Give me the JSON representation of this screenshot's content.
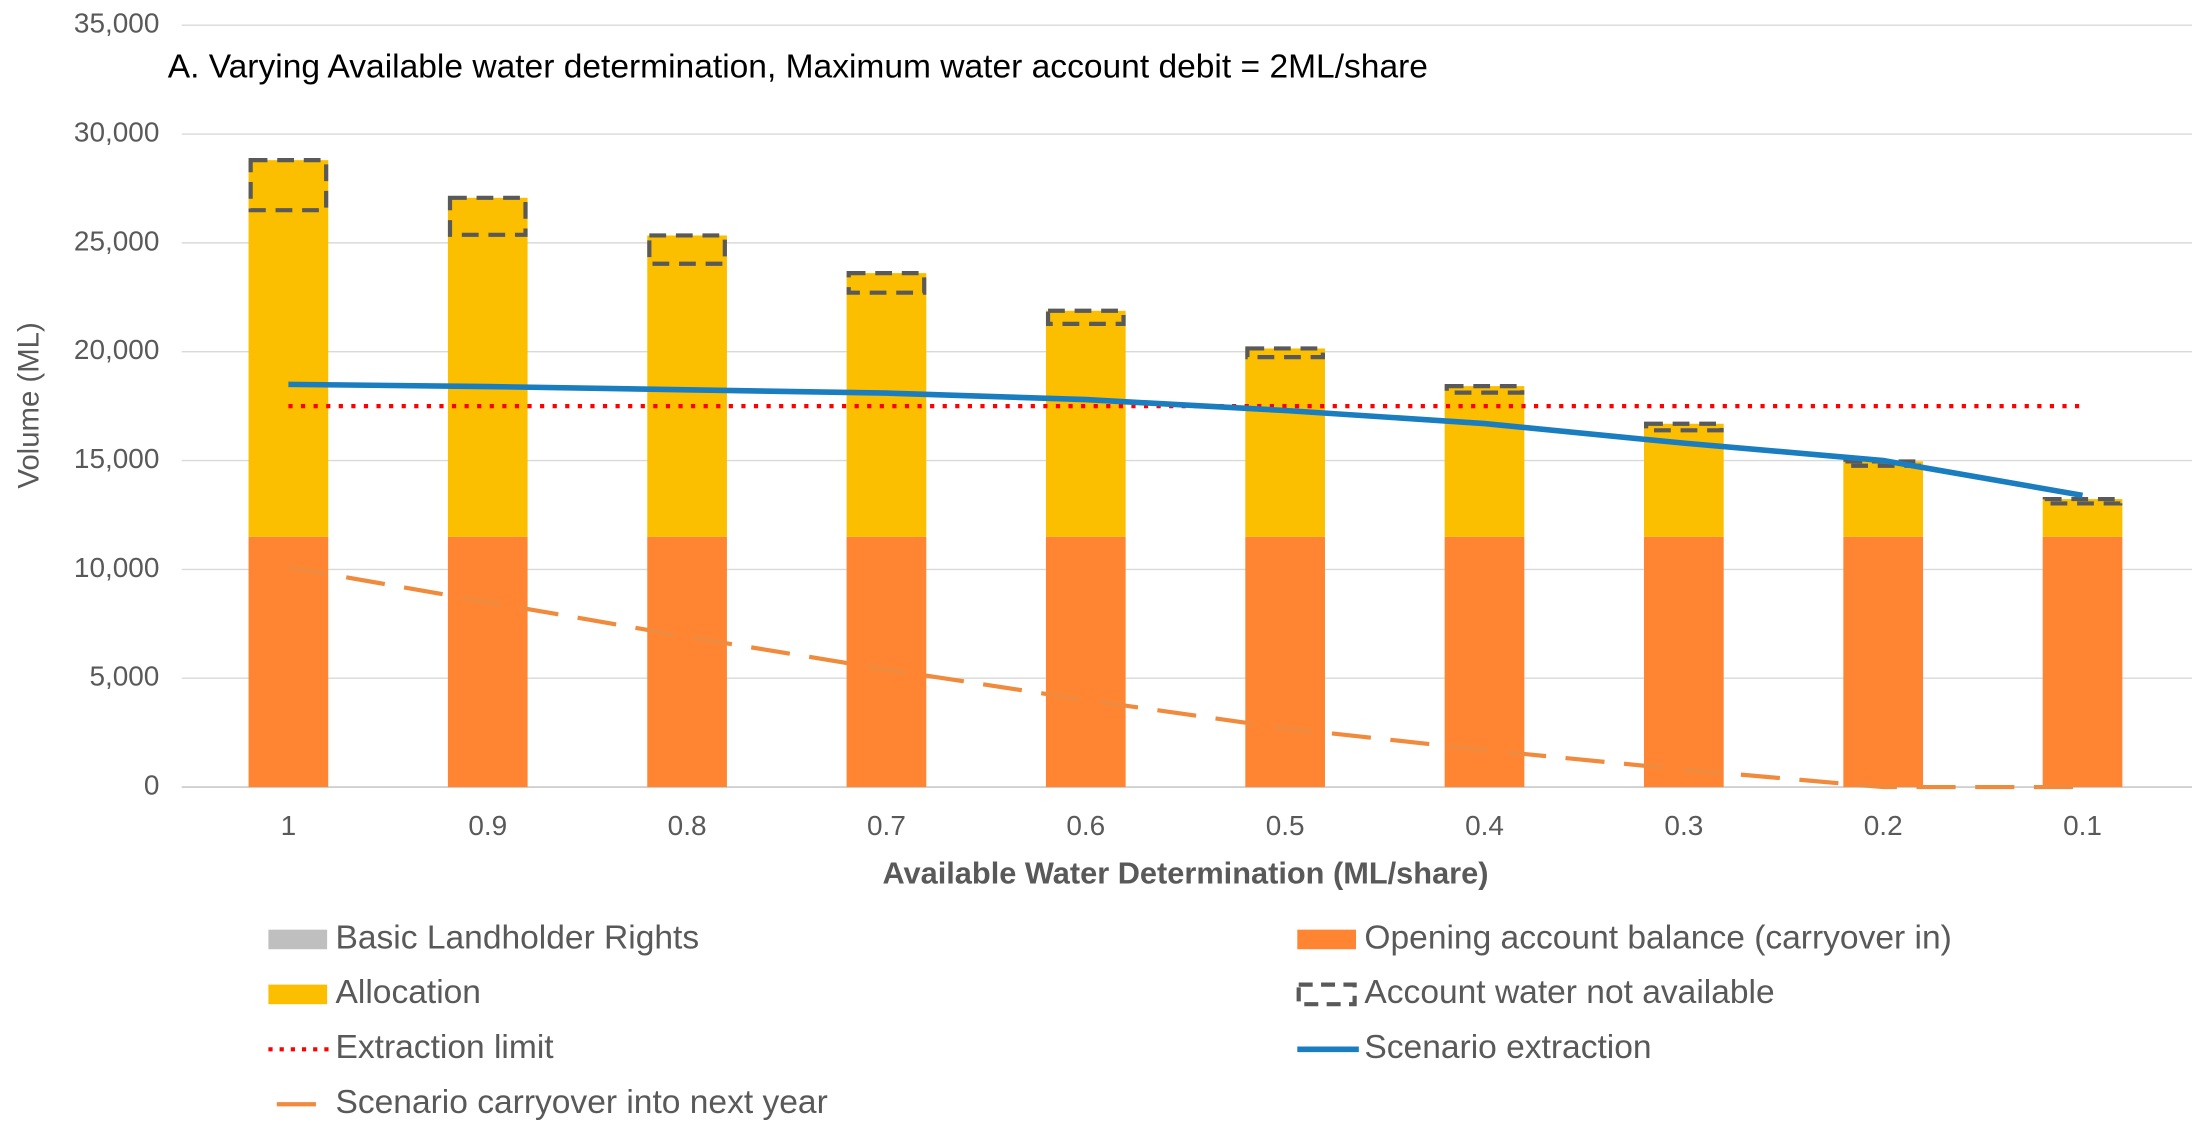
{
  "chart_data": {
    "type": "bar",
    "title": "A. Varying Available water determination,  Maximum water account debit = 2ML/share",
    "x_label": "Available Water Determination (ML/share)",
    "y_label": "Volume (ML)",
    "categories": [
      "1",
      "0.9",
      "0.8",
      "0.7",
      "0.6",
      "0.5",
      "0.4",
      "0.3",
      "0.2",
      "0.1"
    ],
    "series": [
      {
        "name": "Basic Landholder Rights",
        "kind": "stack",
        "color": "#bfbfbf",
        "values": [
          0,
          0,
          0,
          0,
          0,
          0,
          0,
          0,
          0,
          0
        ]
      },
      {
        "name": "Opening  account balance (carryover in)",
        "kind": "stack",
        "color": "#ff8533",
        "values": [
          11500,
          11500,
          11500,
          11500,
          11500,
          11500,
          11500,
          11500,
          11500,
          11500
        ]
      },
      {
        "name": "Allocation",
        "kind": "stack",
        "color": "#fbbf00",
        "values": [
          17300,
          15570,
          13840,
          12110,
          10380,
          8650,
          6920,
          5190,
          3460,
          1730
        ]
      },
      {
        "name": "Account water not available",
        "kind": "overlay",
        "color": "#595959",
        "dash": "12 7",
        "values": [
          2300,
          1700,
          1300,
          900,
          600,
          400,
          300,
          300,
          200,
          200
        ]
      },
      {
        "name": "Extraction limit",
        "kind": "line",
        "color": "#ff0000",
        "dash": "3 6",
        "values": [
          17500,
          17500,
          17500,
          17500,
          17500,
          17500,
          17500,
          17500,
          17500,
          17500
        ]
      },
      {
        "name": "Scenario extraction",
        "kind": "line",
        "color": "#1a7dc0",
        "values": [
          18500,
          18400,
          18250,
          18100,
          17800,
          17300,
          16700,
          15800,
          15000,
          13400
        ]
      },
      {
        "name": "Scenario carryover into next year",
        "kind": "line",
        "color": "#f08a3c",
        "dash": "28 14",
        "values": [
          10100,
          8500,
          6900,
          5400,
          4000,
          2700,
          1700,
          800,
          0,
          0
        ]
      }
    ],
    "ylim": [
      0,
      35000
    ],
    "yticks": [
      {
        "value": 0,
        "label": "0"
      },
      {
        "value": 5000,
        "label": "5,000"
      },
      {
        "value": 10000,
        "label": "10,000"
      },
      {
        "value": 15000,
        "label": "15,000"
      },
      {
        "value": 20000,
        "label": "20,000"
      },
      {
        "value": 25000,
        "label": "25,000"
      },
      {
        "value": 30000,
        "label": "30,000"
      },
      {
        "value": 35000,
        "label": "35,000"
      }
    ],
    "grid": true
  }
}
